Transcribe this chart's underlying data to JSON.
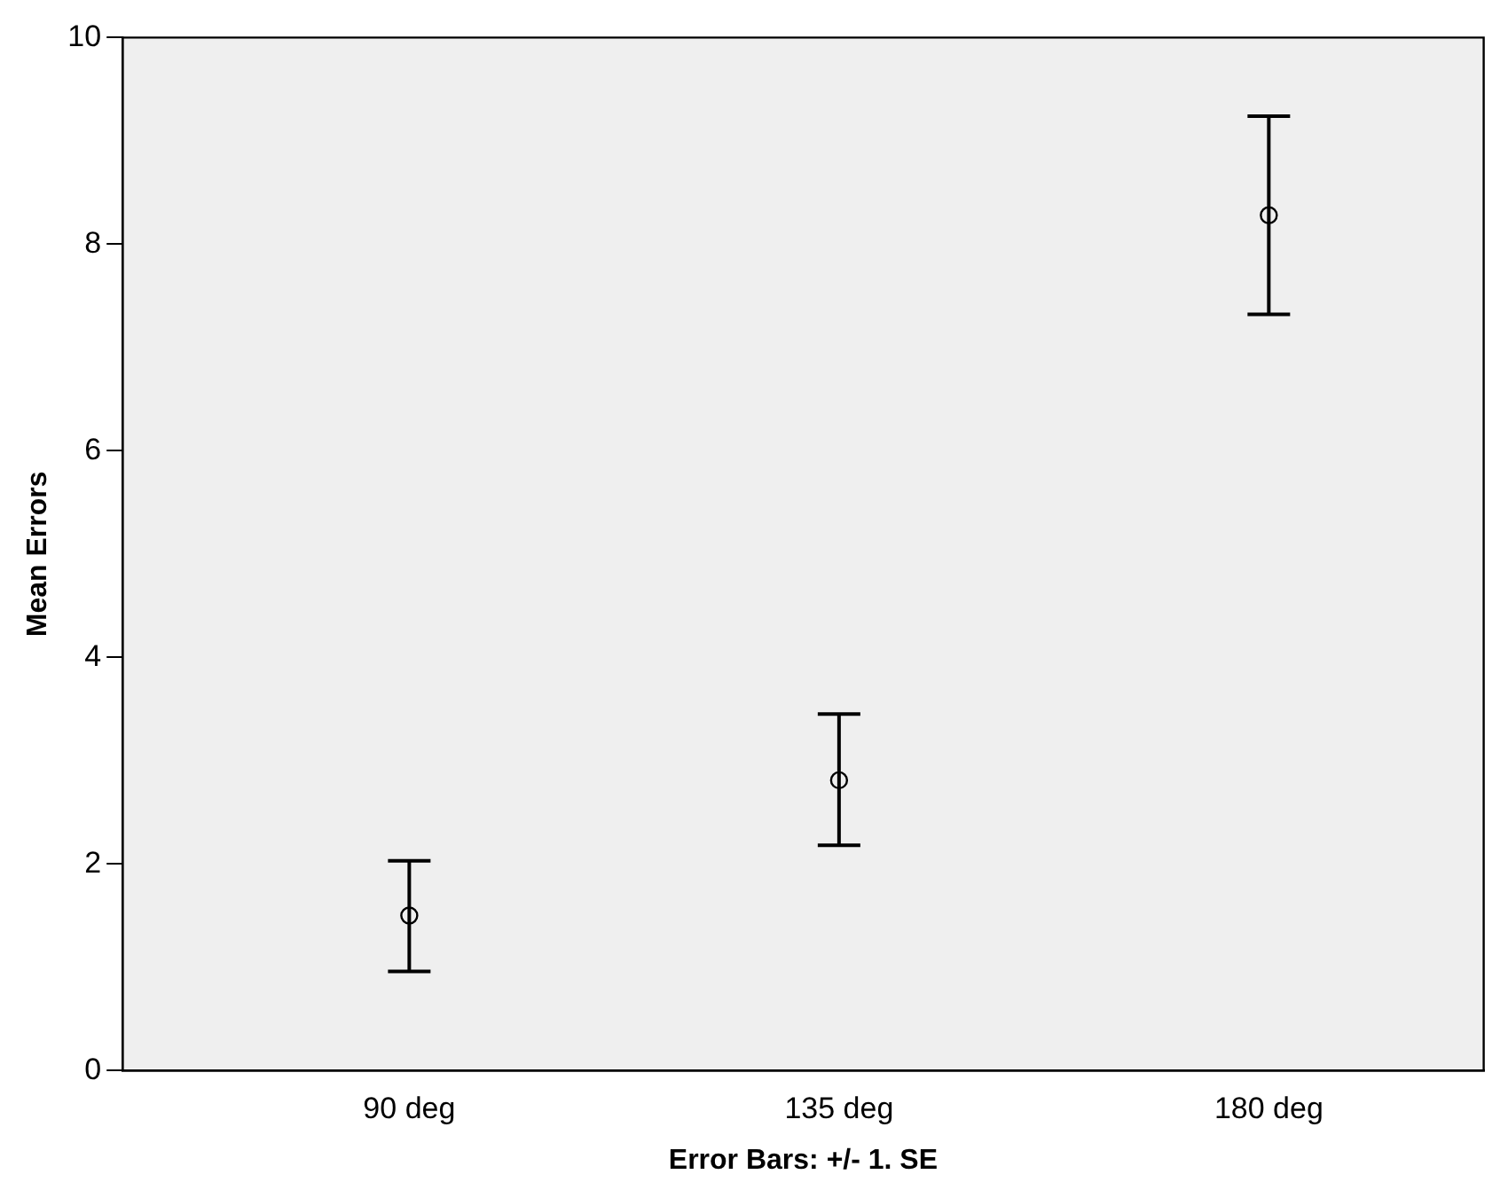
{
  "chart_data": {
    "type": "scatter",
    "ylabel": "Mean Errors",
    "annotations": [
      "Error Bars: +/- 1. SE"
    ],
    "categories": [
      "90 deg",
      "135 deg",
      "180 deg"
    ],
    "series": [
      {
        "color": "#000000",
        "values": [
          1.5,
          2.81,
          8.28
        ],
        "errors": [
          [
            0.96,
            2.03
          ],
          [
            2.18,
            3.45
          ],
          [
            7.32,
            9.24
          ]
        ]
      }
    ],
    "ylim": [
      0,
      10
    ],
    "yticks": [
      0,
      2,
      4,
      6,
      8,
      10
    ],
    "grid": false,
    "legend": false,
    "marker": "circle"
  }
}
